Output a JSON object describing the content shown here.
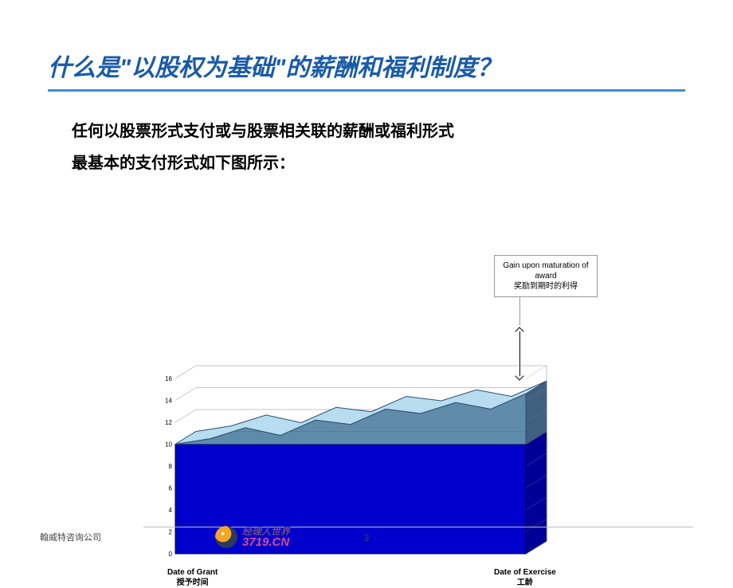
{
  "title": "什么是\"以股权为基础\"的薪酬和福利制度？",
  "body_line1": "任何以股票形式支付或与股票相关联的薪酬或福利形式",
  "body_line2": "最基本的支付形式如下图所示：",
  "callout": {
    "en": "Gain upon maturation of award",
    "zh": "奖励到期时的利得"
  },
  "chart": {
    "type": "area3d",
    "xlim": [
      0,
      10
    ],
    "ylim": [
      0,
      16
    ],
    "ytick_step": 2,
    "ytick_count": 9,
    "grant_level": 10,
    "market_series": [
      10,
      10.5,
      11.5,
      10.8,
      12.2,
      11.8,
      13.2,
      12.8,
      13.8,
      13.2,
      14.6
    ],
    "base_fill": "#0000cc",
    "base_top": "#dff2ff",
    "gain_fill": "#b8dcf0",
    "gain_side": "#5080a0",
    "axis_color": "#888888",
    "axis_fontsize": 8,
    "depth_dx": 26,
    "depth_dy": -16
  },
  "labels": {
    "date_of_grant": {
      "en": "Date of Grant",
      "zh": "授予时间"
    },
    "date_of_exercise": {
      "en": "Date of Exercise",
      "zh": "工龄"
    }
  },
  "footer": {
    "company": "翰威特咨询公司",
    "logo_top": "经理人世界",
    "logo_bottom": "3719.CN",
    "page": "3"
  }
}
